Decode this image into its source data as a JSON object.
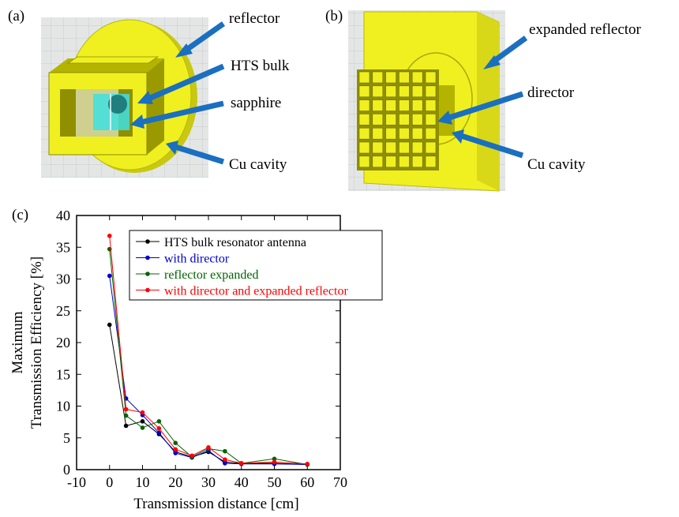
{
  "panel_a": {
    "letter": "(a)",
    "labels": {
      "reflector": "reflector",
      "hts_bulk": "HTS bulk",
      "sapphire": "sapphire",
      "cu_cavity": "Cu cavity"
    }
  },
  "panel_b": {
    "letter": "(b)",
    "labels": {
      "expanded_reflector": "expanded reflector",
      "director": "director",
      "cu_cavity": "Cu cavity"
    }
  },
  "panel_c": {
    "letter": "(c)"
  },
  "colors": {
    "cad_background": "#e4e6e6",
    "yellow": "#f0f020",
    "yellow_dark": "#c8c810",
    "olive": "#8f8f00",
    "sapphire": "#40e0e0",
    "arrow": "#1a6fc0"
  },
  "chart_data": {
    "type": "line",
    "xlabel": "Transmission distance [cm]",
    "ylabel_lines": [
      "Maximum",
      "Transmission Efficiency [%]"
    ],
    "xlim": [
      -10,
      70
    ],
    "ylim": [
      0,
      40
    ],
    "x_ticks": [
      -10,
      0,
      10,
      20,
      30,
      40,
      50,
      60,
      70
    ],
    "y_ticks": [
      0,
      5,
      10,
      15,
      20,
      25,
      30,
      35,
      40
    ],
    "legend_position": "top-right",
    "series": [
      {
        "name": "HTS bulk resonator antenna",
        "color": "#000000",
        "x": [
          0,
          5,
          10,
          15,
          20,
          25,
          30,
          35,
          40,
          50,
          60
        ],
        "y": [
          22.8,
          6.9,
          7.6,
          5.6,
          2.8,
          2.0,
          2.8,
          1.2,
          1.0,
          1.0,
          0.8
        ]
      },
      {
        "name": "with director",
        "color": "#0000cc",
        "x": [
          0,
          5,
          10,
          15,
          20,
          25,
          30,
          35,
          40,
          50,
          60
        ],
        "y": [
          30.5,
          11.2,
          8.6,
          5.8,
          2.6,
          1.9,
          3.0,
          1.0,
          0.9,
          0.9,
          0.8
        ]
      },
      {
        "name": "reflector expanded",
        "color": "#006400",
        "x": [
          0,
          5,
          10,
          15,
          20,
          25,
          30,
          35,
          40,
          50,
          60
        ],
        "y": [
          34.7,
          8.5,
          6.6,
          7.6,
          4.2,
          2.0,
          3.3,
          2.9,
          1.0,
          1.7,
          0.8
        ]
      },
      {
        "name": "with director and expanded reflector",
        "color": "#ff0000",
        "x": [
          0,
          5,
          10,
          15,
          20,
          25,
          30,
          35,
          40,
          50,
          60
        ],
        "y": [
          36.8,
          9.5,
          9.0,
          6.5,
          3.2,
          2.2,
          3.5,
          1.6,
          1.0,
          1.2,
          0.9
        ]
      }
    ]
  }
}
